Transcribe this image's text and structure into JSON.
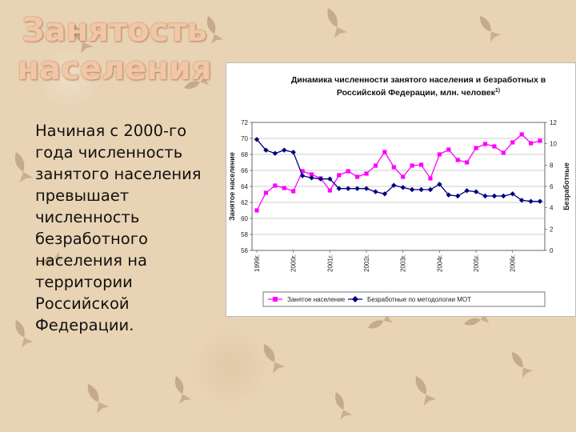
{
  "slide": {
    "title": "Занятость населения",
    "body": "Начиная с 2000-го года численность занятого населения превышает численность безработного населения на территории Российской Федерации."
  },
  "colors": {
    "background": "#e8d3b4",
    "title": "#f2c7a8",
    "employed": "#ff00ff",
    "unemployed": "#000080"
  },
  "chart_data": {
    "type": "line",
    "title_line1": "Динамика численности занятого населения и безработных в",
    "title_line2": "Российской Федерации, млн. человек",
    "title_footnote": "1)",
    "ylabel_left": "Занятое население",
    "ylabel_right": "Безработные",
    "ylim_left": [
      56,
      72
    ],
    "yticks_left": [
      "56",
      "58",
      "60",
      "62",
      "64",
      "66",
      "68",
      "70",
      "72"
    ],
    "ylim_right": [
      0,
      12
    ],
    "yticks_right": [
      "0",
      "2",
      "4",
      "6",
      "8",
      "10",
      "12"
    ],
    "year_labels": [
      "1999г.",
      "2000г.",
      "2001г.",
      "2002г.",
      "2003г.",
      "2004г.",
      "2005г.",
      "2006г."
    ],
    "grid": true,
    "legend_position": "bottom",
    "series": [
      {
        "name": "Занятое население",
        "axis": "left",
        "color": "#ff00ff",
        "marker": "square",
        "values": [
          61.0,
          63.2,
          64.1,
          63.8,
          63.4,
          65.9,
          65.5,
          65.0,
          63.5,
          65.4,
          65.9,
          65.2,
          65.6,
          66.6,
          68.3,
          66.4,
          65.2,
          66.6,
          66.7,
          65.0,
          68.0,
          68.6,
          67.3,
          67.0,
          68.8,
          69.3,
          69.0,
          68.2,
          69.5,
          70.5,
          69.4,
          69.7
        ]
      },
      {
        "name": "Безработные по методологии МОТ",
        "axis": "right",
        "color": "#000080",
        "marker": "diamond",
        "values": [
          10.4,
          9.4,
          9.1,
          9.4,
          9.2,
          7.0,
          6.8,
          6.7,
          6.7,
          5.8,
          5.8,
          5.8,
          5.8,
          5.5,
          5.3,
          6.1,
          5.9,
          5.7,
          5.7,
          5.7,
          6.2,
          5.2,
          5.1,
          5.6,
          5.5,
          5.1,
          5.1,
          5.1,
          5.3,
          4.7,
          4.6,
          4.6
        ]
      }
    ]
  }
}
